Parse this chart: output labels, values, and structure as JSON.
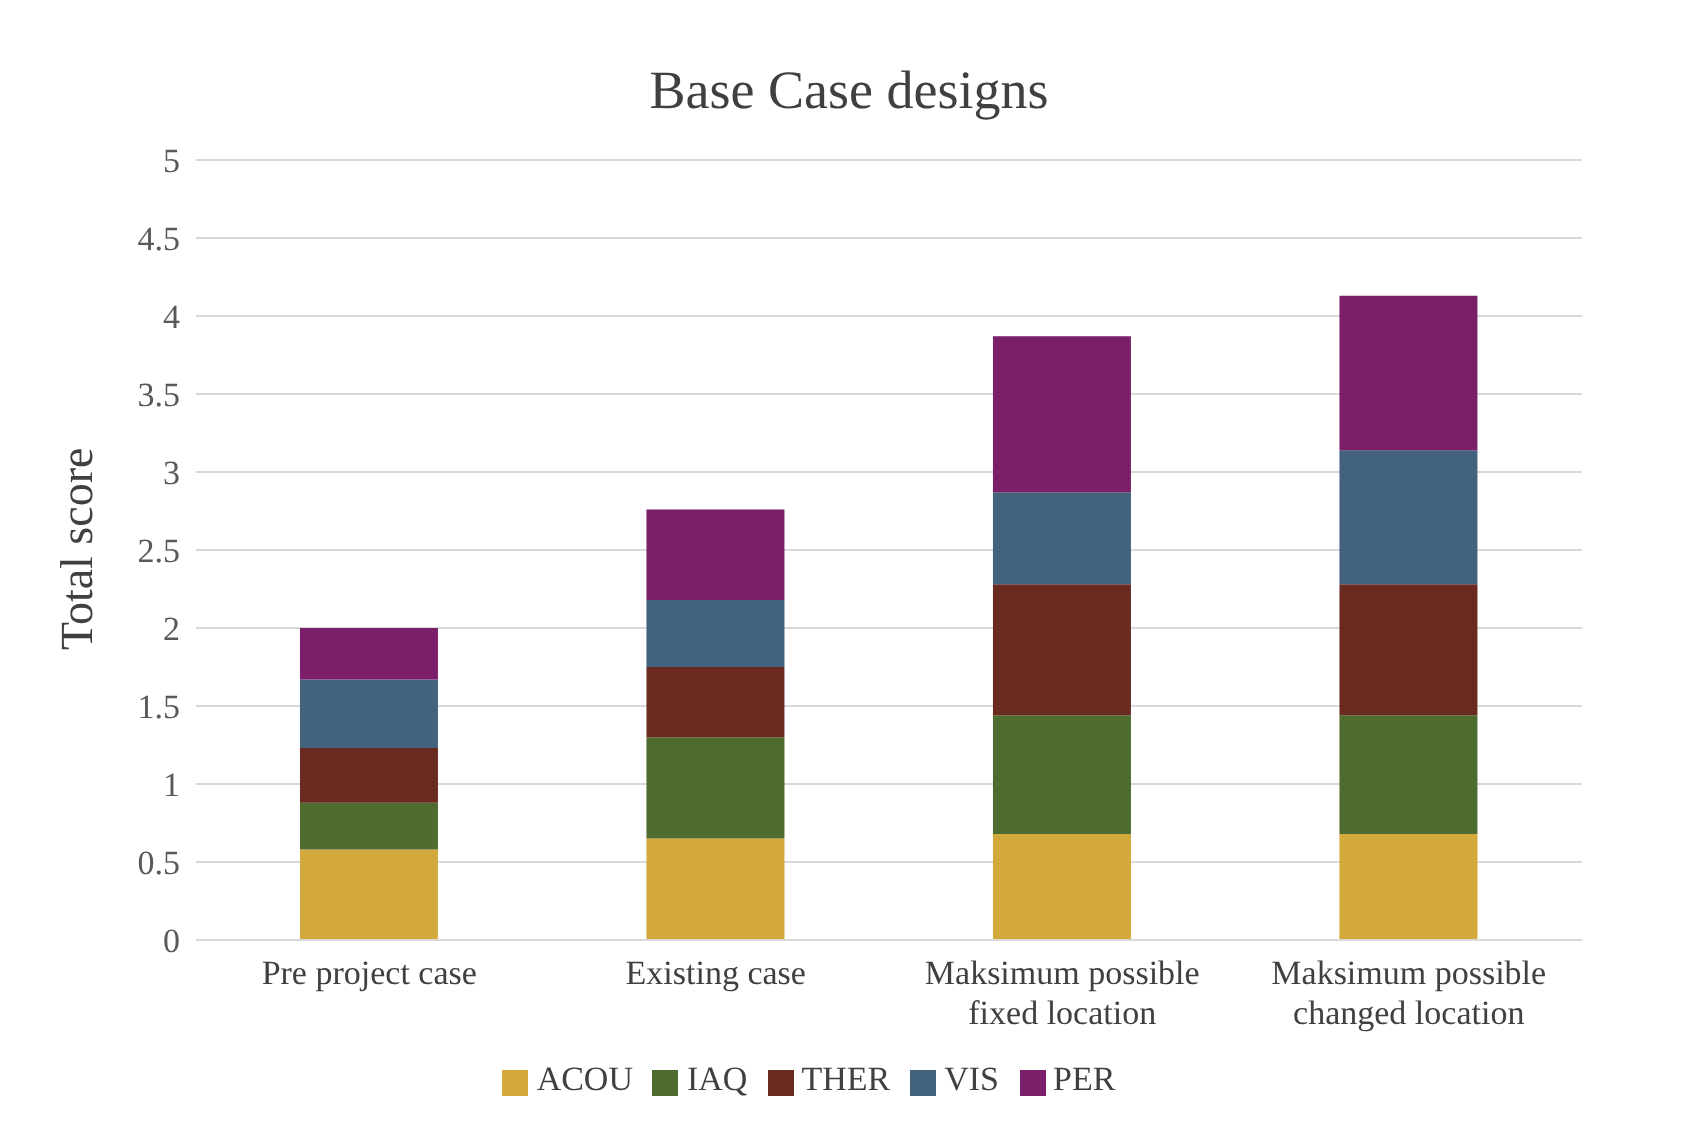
{
  "chart_data": {
    "type": "bar",
    "title": "Base Case designs",
    "ylabel": "Total score",
    "categories": [
      "Pre project case",
      "Existing case",
      "Maksimum possible fixed location",
      "Maksimum possible changed location"
    ],
    "stacked": true,
    "series": [
      {
        "name": "ACOU",
        "color": "#d4a93c",
        "values": [
          0.58,
          0.65,
          0.68,
          0.68
        ]
      },
      {
        "name": "IAQ",
        "color": "#4e6b30",
        "values": [
          0.3,
          0.65,
          0.76,
          0.76
        ]
      },
      {
        "name": "THER",
        "color": "#6b2a20",
        "values": [
          0.35,
          0.45,
          0.84,
          0.84
        ]
      },
      {
        "name": "VIS",
        "color": "#43627e",
        "values": [
          0.44,
          0.43,
          0.59,
          0.86
        ]
      },
      {
        "name": "PER",
        "color": "#7b1f6a",
        "values": [
          0.33,
          0.58,
          1.0,
          0.99
        ]
      }
    ],
    "ylim": [
      0,
      5
    ],
    "yticks": [
      0,
      0.5,
      1,
      1.5,
      2,
      2.5,
      3,
      3.5,
      4,
      4.5,
      5
    ],
    "grid": "y",
    "legend": "bottom"
  }
}
